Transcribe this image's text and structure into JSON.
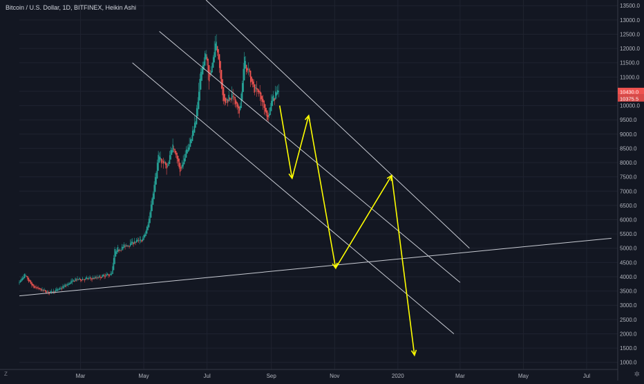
{
  "chart_data": {
    "type": "candlestick",
    "title": "Bitcoin / U.S. Dollar, 1D, BITFINEX, Heikin Ashi",
    "x_range": [
      "2019-01-01",
      "2020-07-31"
    ],
    "ylim": [
      750,
      13700
    ],
    "y_ticks": [
      "1000.0",
      "1500.0",
      "2000.0",
      "2500.0",
      "3000.0",
      "3500.0",
      "4000.0",
      "4500.0",
      "5000.0",
      "5500.0",
      "6000.0",
      "6500.0",
      "7000.0",
      "7500.0",
      "8000.0",
      "8500.0",
      "9000.0",
      "9500.0",
      "10000.0",
      "10500.0",
      "11000.0",
      "11500.0",
      "12000.0",
      "12500.0",
      "13000.0",
      "13500.0"
    ],
    "x_ticks": [
      {
        "label": "Mar",
        "date": "2019-03-01"
      },
      {
        "label": "May",
        "date": "2019-05-01"
      },
      {
        "label": "Jul",
        "date": "2019-07-01"
      },
      {
        "label": "Sep",
        "date": "2019-09-01"
      },
      {
        "label": "Nov",
        "date": "2019-11-01"
      },
      {
        "label": "2020",
        "date": "2020-01-01"
      },
      {
        "label": "Mar",
        "date": "2020-03-01"
      },
      {
        "label": "May",
        "date": "2020-05-01"
      },
      {
        "label": "Jul",
        "date": "2020-07-01"
      }
    ],
    "price_anchors": [
      [
        "2019-01-01",
        3800
      ],
      [
        "2019-01-06",
        4050
      ],
      [
        "2019-01-14",
        3650
      ],
      [
        "2019-01-29",
        3450
      ],
      [
        "2019-02-08",
        3550
      ],
      [
        "2019-02-24",
        3900
      ],
      [
        "2019-03-15",
        3950
      ],
      [
        "2019-03-31",
        4100
      ],
      [
        "2019-04-03",
        4900
      ],
      [
        "2019-04-20",
        5200
      ],
      [
        "2019-04-30",
        5300
      ],
      [
        "2019-05-05",
        5800
      ],
      [
        "2019-05-12",
        7500
      ],
      [
        "2019-05-15",
        8200
      ],
      [
        "2019-05-24",
        7800
      ],
      [
        "2019-05-29",
        8700
      ],
      [
        "2019-06-05",
        7700
      ],
      [
        "2019-06-16",
        8900
      ],
      [
        "2019-06-20",
        9500
      ],
      [
        "2019-06-26",
        11500
      ],
      [
        "2019-06-30",
        11800
      ],
      [
        "2019-07-03",
        10800
      ],
      [
        "2019-07-10",
        12300
      ],
      [
        "2019-07-17",
        10100
      ],
      [
        "2019-07-25",
        10400
      ],
      [
        "2019-08-01",
        9700
      ],
      [
        "2019-08-06",
        11600
      ],
      [
        "2019-08-14",
        10700
      ],
      [
        "2019-08-20",
        10500
      ],
      [
        "2019-08-29",
        9500
      ],
      [
        "2019-09-01",
        10200
      ],
      [
        "2019-09-08",
        10550
      ]
    ],
    "last_price": "10430.0",
    "prev_price": "10375.5",
    "trendlines": [
      {
        "from": [
          "2019-01-01",
          3330
        ],
        "to": [
          "2020-07-25",
          5350
        ]
      },
      {
        "from": [
          "2019-06-30",
          13700
        ],
        "to": [
          "2020-03-10",
          5000
        ]
      },
      {
        "from": [
          "2019-05-16",
          12600
        ],
        "to": [
          "2020-03-01",
          3800
        ]
      },
      {
        "from": [
          "2019-04-20",
          11500
        ],
        "to": [
          "2020-02-24",
          2000
        ]
      }
    ],
    "projection_path": [
      [
        "2019-09-09",
        10000
      ],
      [
        "2019-09-21",
        7450
      ],
      [
        "2019-10-07",
        9650
      ],
      [
        "2019-11-02",
        4300
      ],
      [
        "2019-12-26",
        7550
      ],
      [
        "2020-01-17",
        1250
      ]
    ],
    "colors": {
      "background": "#131722",
      "up": "#26a69a",
      "down": "#ef5350",
      "grid": "#1f2330",
      "trendline": "#c9ccd4",
      "projection": "#ffff00",
      "axis_text": "#b2b5be",
      "last_price_bg": "#ef5350",
      "prev_price_bg": "#d84a48"
    }
  },
  "footer": {
    "corner_label": "Z",
    "settings_icon": "gear-icon",
    "settings_glyph": "✲"
  }
}
